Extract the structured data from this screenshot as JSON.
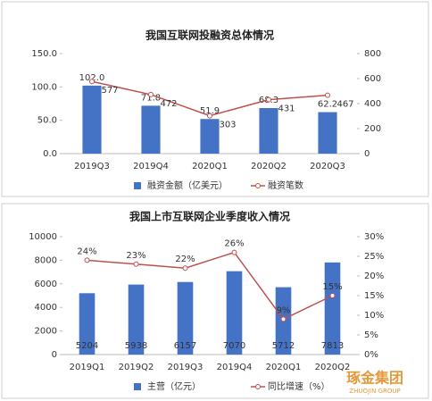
{
  "chart_data": [
    {
      "type": "bar",
      "title": "我国互联网投融资总体情况",
      "categories": [
        "2019Q3",
        "2019Q4",
        "2020Q1",
        "2020Q2",
        "2020Q3"
      ],
      "series": [
        {
          "name": "融资金额（亿美元）",
          "color": "#4472c4",
          "type": "bar",
          "values": [
            102.0,
            71.8,
            51.9,
            68.3,
            62.2
          ],
          "value_labels": [
            "102.0",
            "71.8",
            "51.9",
            "68.3",
            "62.2"
          ]
        },
        {
          "name": "融资笔数",
          "color": "#c0504d",
          "type": "line",
          "axis": "y2",
          "values": [
            577,
            472,
            303,
            431,
            467
          ]
        }
      ],
      "ylim": [
        0,
        150
      ],
      "yticks": [
        {
          "value": 0,
          "label": "0.0"
        },
        {
          "value": 50,
          "label": "50.0"
        },
        {
          "value": 100,
          "label": "100.0"
        },
        {
          "value": 150,
          "label": "150.0"
        }
      ],
      "y2lim": [
        0,
        800
      ],
      "y2ticks": [
        0,
        200,
        400,
        600,
        800
      ],
      "grid": false,
      "legend": "bottom"
    },
    {
      "type": "bar",
      "title": "我国上市互联网企业季度收入情况",
      "categories": [
        "2019Q1",
        "2019Q2",
        "2019Q3",
        "2019Q4",
        "2020Q1",
        "2020Q2"
      ],
      "series": [
        {
          "name": "主营（亿元）",
          "color": "#4472c4",
          "type": "bar",
          "values": [
            5204,
            5938,
            6157,
            7070,
            5712,
            7813
          ]
        },
        {
          "name": "同比增速（%）",
          "color": "#c0504d",
          "type": "line",
          "axis": "y2",
          "values": [
            24,
            23,
            22,
            26,
            9,
            15
          ],
          "value_labels": [
            "24%",
            "23%",
            "22%",
            "26%",
            "9%",
            "15%"
          ]
        }
      ],
      "ylim": [
        0,
        10000
      ],
      "yticks": [
        0,
        2000,
        4000,
        6000,
        8000,
        10000
      ],
      "y2lim": [
        0,
        30
      ],
      "y2ticks": [
        {
          "value": 0,
          "label": "0%"
        },
        {
          "value": 5,
          "label": "5%"
        },
        {
          "value": 10,
          "label": "10%"
        },
        {
          "value": 15,
          "label": "15%"
        },
        {
          "value": 20,
          "label": "20%"
        },
        {
          "value": 25,
          "label": "25%"
        },
        {
          "value": 30,
          "label": "30%"
        }
      ],
      "grid": false,
      "legend": "bottom"
    }
  ],
  "watermark": {
    "name": "琢金集团",
    "subtitle": "ZHUOJIN GROUP"
  }
}
